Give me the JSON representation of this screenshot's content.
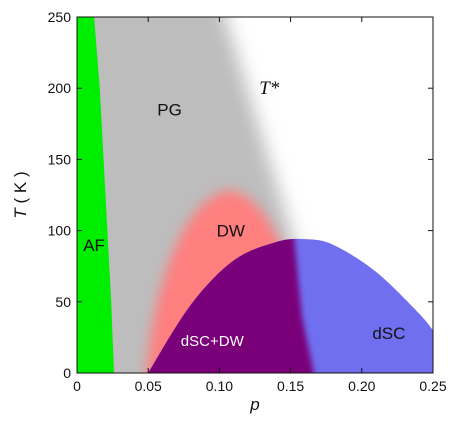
{
  "chart_data": {
    "type": "area",
    "title": "",
    "xlabel": "p",
    "ylabel": "T ( K )",
    "ylabel_italic_part": "T",
    "ylabel_rest": " ( K )",
    "xlim": [
      0,
      0.25
    ],
    "ylim": [
      0,
      250
    ],
    "x_ticks": [
      0,
      0.05,
      0.1,
      0.15,
      0.2,
      0.25
    ],
    "x_tick_labels": [
      "0",
      "0.05",
      "0.10",
      "0.15",
      "0.20",
      "0.25"
    ],
    "y_ticks": [
      0,
      50,
      100,
      150,
      200,
      250
    ],
    "y_tick_labels": [
      "0",
      "50",
      "100",
      "150",
      "200",
      "250"
    ],
    "regions": [
      {
        "name": "AF",
        "color": "#00ee00",
        "boundary": {
          "p": [
            0.0,
            0.012,
            0.016,
            0.02,
            0.024,
            0.026,
            0.0
          ],
          "T": [
            250,
            250,
            200,
            125,
            50,
            0,
            0
          ]
        }
      },
      {
        "name": "PG",
        "color": "#bdbdbd",
        "crossover_line": {
          "p": [
            0.1,
            0.185
          ],
          "T": [
            250,
            0
          ]
        }
      },
      {
        "name": "DW",
        "color": "#ff7f7f",
        "dome": {
          "center_p": 0.107,
          "peak_T": 128,
          "left_p": 0.048,
          "right_p": 0.165
        }
      },
      {
        "name": "dSC",
        "color": "#6f6ff0",
        "dome": {
          "p": [
            0.05,
            0.08,
            0.11,
            0.14,
            0.16,
            0.18,
            0.21,
            0.24,
            0.25
          ],
          "T": [
            0,
            48,
            79,
            92,
            94,
            90,
            71,
            42,
            30
          ]
        }
      },
      {
        "name": "dSC+DW",
        "color": "#7a007a"
      }
    ],
    "annotations": [
      {
        "text": "AF",
        "p": 0.012,
        "T": 90
      },
      {
        "text": "PG",
        "p": 0.065,
        "T": 185
      },
      {
        "text": "T*",
        "p": 0.135,
        "T": 200
      },
      {
        "text": "DW",
        "p": 0.108,
        "T": 100
      },
      {
        "text": "dSC+DW",
        "p": 0.095,
        "T": 23
      },
      {
        "text": "dSC",
        "p": 0.219,
        "T": 28
      }
    ],
    "grid": false,
    "legend": "none"
  },
  "colors": {
    "af": "#00ee00",
    "pg": "#bdbdbd",
    "dw": "#ff7f7f",
    "dsc": "#6f6ff0",
    "overlap": "#7a007a"
  }
}
